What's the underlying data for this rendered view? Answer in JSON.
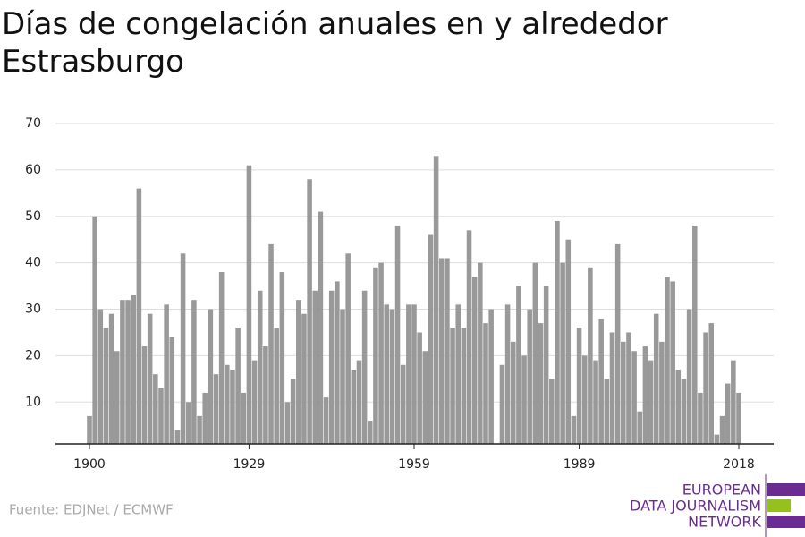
{
  "chart_data": {
    "type": "bar",
    "title": "Días de congelación anuales en y alrededor Estrasburgo",
    "x": [
      1900,
      1901,
      1902,
      1903,
      1904,
      1905,
      1906,
      1907,
      1908,
      1909,
      1910,
      1911,
      1912,
      1913,
      1914,
      1915,
      1916,
      1917,
      1918,
      1919,
      1920,
      1921,
      1922,
      1923,
      1924,
      1925,
      1926,
      1927,
      1928,
      1929,
      1930,
      1931,
      1932,
      1933,
      1934,
      1935,
      1936,
      1937,
      1938,
      1939,
      1940,
      1941,
      1942,
      1943,
      1944,
      1945,
      1946,
      1947,
      1948,
      1949,
      1950,
      1951,
      1952,
      1953,
      1954,
      1955,
      1956,
      1957,
      1958,
      1959,
      1960,
      1961,
      1962,
      1963,
      1964,
      1965,
      1966,
      1967,
      1968,
      1969,
      1970,
      1971,
      1972,
      1973,
      1974,
      1975,
      1976,
      1977,
      1978,
      1979,
      1980,
      1981,
      1982,
      1983,
      1984,
      1985,
      1986,
      1987,
      1988,
      1989,
      1990,
      1991,
      1992,
      1993,
      1994,
      1995,
      1996,
      1997,
      1998,
      1999,
      2000,
      2001,
      2002,
      2003,
      2004,
      2005,
      2006,
      2007,
      2008,
      2009,
      2010,
      2011,
      2012,
      2013,
      2014,
      2015,
      2016,
      2017,
      2018
    ],
    "values": [
      7,
      50,
      30,
      26,
      29,
      21,
      32,
      32,
      33,
      56,
      22,
      29,
      16,
      13,
      31,
      24,
      4,
      42,
      10,
      32,
      7,
      12,
      30,
      16,
      38,
      18,
      17,
      26,
      12,
      61,
      19,
      34,
      22,
      44,
      26,
      38,
      10,
      15,
      32,
      29,
      58,
      34,
      51,
      11,
      34,
      36,
      30,
      42,
      17,
      19,
      34,
      6,
      39,
      40,
      31,
      30,
      48,
      18,
      31,
      31,
      25,
      21,
      46,
      63,
      41,
      41,
      26,
      31,
      26,
      47,
      37,
      40,
      27,
      30,
      null,
      18,
      31,
      23,
      35,
      20,
      30,
      40,
      27,
      35,
      15,
      49,
      40,
      45,
      7,
      26,
      20,
      39,
      19,
      28,
      15,
      25,
      44,
      23,
      25,
      21,
      8,
      22,
      19,
      29,
      23,
      37,
      36,
      17,
      15,
      30,
      48,
      12,
      25,
      27,
      3,
      7,
      14,
      19,
      12
    ],
    "color": "#999999",
    "xlim": [
      1900,
      2018
    ],
    "xticks": [
      1900,
      1929,
      1959,
      1989,
      2018
    ],
    "ylim": [
      1,
      70
    ],
    "yticks": [
      10,
      20,
      30,
      40,
      50,
      60,
      70
    ],
    "grid": true,
    "source": "Fuente: EDJNet / ECMWF",
    "logo": [
      "EUROPEAN",
      "DATA JOURNALISM",
      "NETWORK"
    ]
  }
}
